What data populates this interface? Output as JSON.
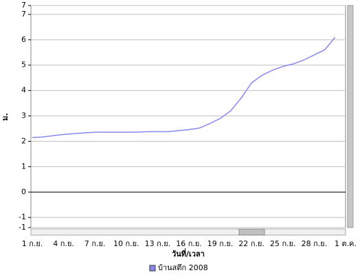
{
  "chart_data": {
    "type": "line",
    "y_label": "ม.",
    "x_label": "วันที่/เวลา",
    "categories": [
      "1 ก.ย.",
      null,
      null,
      "4 ก.ย.",
      null,
      null,
      "7 ก.ย.",
      null,
      null,
      "10 ก.ย.",
      null,
      null,
      "13 ก.ย.",
      null,
      null,
      "16 ก.ย.",
      null,
      null,
      "19 ก.ย.",
      null,
      null,
      "22 ก.ย.",
      null,
      null,
      "25 ก.ย.",
      null,
      null,
      "28 ก.ย.",
      null,
      null,
      "1 ต.ค."
    ],
    "series": [
      {
        "name": "บ้านสตึก 2008",
        "color": "#8888ee",
        "values": [
          2.15,
          2.17,
          2.22,
          2.27,
          2.3,
          2.33,
          2.36,
          2.36,
          2.36,
          2.36,
          2.36,
          2.38,
          2.38,
          2.38,
          2.42,
          2.46,
          2.52,
          2.7,
          2.9,
          3.2,
          3.7,
          4.3,
          4.6,
          4.8,
          4.95,
          5.05,
          5.2,
          5.4,
          5.6,
          6.1,
          null
        ]
      }
    ],
    "ylim": [
      -1.4,
      7.35
    ],
    "yticks": [
      {
        "value": -1.4,
        "label": "-1"
      },
      -1,
      0,
      1,
      2,
      3,
      4,
      5,
      6,
      7,
      {
        "value": 7.35,
        "label": "7"
      }
    ],
    "grid": true
  }
}
